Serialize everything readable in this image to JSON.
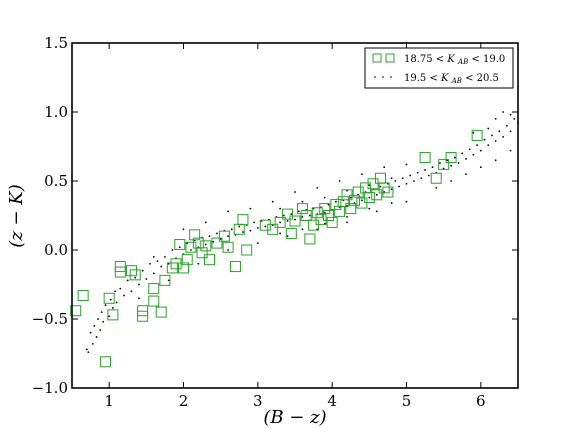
{
  "chart_data": {
    "type": "scatter",
    "title": "",
    "xlabel": "(B − z)",
    "ylabel": "(z − K)",
    "xlim": [
      0.5,
      6.5
    ],
    "ylim": [
      -1.0,
      1.5
    ],
    "x_ticks": [
      1,
      2,
      3,
      4,
      5,
      6
    ],
    "y_ticks": [
      -1.0,
      -0.5,
      0.0,
      0.5,
      1.0,
      1.5
    ],
    "x_tick_labels": [
      "1",
      "2",
      "3",
      "4",
      "5",
      "6"
    ],
    "y_tick_labels": [
      "−1.0",
      "−0.5",
      "0.0",
      "0.5",
      "1.0",
      "1.5"
    ],
    "grid": false,
    "legend_position": "top-right",
    "series": [
      {
        "name": "18.75 < K_AB < 19.0",
        "label_parts": {
          "left": "18.75 <",
          "var": "K",
          "sub": "AB",
          "right": "< 19.0"
        },
        "marker": "open-square",
        "color": "#2ca02c",
        "points": [
          [
            0.55,
            -0.44
          ],
          [
            0.65,
            -0.33
          ],
          [
            0.95,
            -0.81
          ],
          [
            1.0,
            -0.35
          ],
          [
            1.05,
            -0.47
          ],
          [
            1.15,
            -0.12
          ],
          [
            1.15,
            -0.16
          ],
          [
            1.3,
            -0.15
          ],
          [
            1.35,
            -0.18
          ],
          [
            1.45,
            -0.44
          ],
          [
            1.45,
            -0.48
          ],
          [
            1.6,
            -0.37
          ],
          [
            1.6,
            -0.28
          ],
          [
            1.7,
            -0.45
          ],
          [
            1.75,
            -0.22
          ],
          [
            1.85,
            -0.13
          ],
          [
            1.9,
            -0.1
          ],
          [
            1.95,
            0.04
          ],
          [
            2.0,
            -0.13
          ],
          [
            2.05,
            -0.07
          ],
          [
            2.1,
            0.02
          ],
          [
            2.15,
            0.11
          ],
          [
            2.2,
            0.05
          ],
          [
            2.25,
            -0.02
          ],
          [
            2.3,
            0.03
          ],
          [
            2.35,
            -0.07
          ],
          [
            2.45,
            0.05
          ],
          [
            2.55,
            0.1
          ],
          [
            2.6,
            0.02
          ],
          [
            2.7,
            -0.12
          ],
          [
            2.75,
            0.15
          ],
          [
            2.8,
            0.22
          ],
          [
            2.85,
            0.0
          ],
          [
            3.1,
            0.18
          ],
          [
            3.2,
            0.15
          ],
          [
            3.3,
            0.2
          ],
          [
            3.4,
            0.26
          ],
          [
            3.45,
            0.12
          ],
          [
            3.5,
            0.21
          ],
          [
            3.6,
            0.3
          ],
          [
            3.65,
            0.25
          ],
          [
            3.7,
            0.08
          ],
          [
            3.75,
            0.18
          ],
          [
            3.8,
            0.27
          ],
          [
            3.85,
            0.22
          ],
          [
            3.9,
            0.3
          ],
          [
            3.95,
            0.25
          ],
          [
            4.0,
            0.2
          ],
          [
            4.05,
            0.33
          ],
          [
            4.1,
            0.28
          ],
          [
            4.15,
            0.35
          ],
          [
            4.2,
            0.4
          ],
          [
            4.25,
            0.3
          ],
          [
            4.3,
            0.36
          ],
          [
            4.35,
            0.42
          ],
          [
            4.4,
            0.34
          ],
          [
            4.45,
            0.45
          ],
          [
            4.5,
            0.38
          ],
          [
            4.55,
            0.48
          ],
          [
            4.6,
            0.4
          ],
          [
            4.65,
            0.52
          ],
          [
            4.7,
            0.45
          ],
          [
            4.75,
            0.42
          ],
          [
            5.25,
            0.67
          ],
          [
            5.4,
            0.52
          ],
          [
            5.5,
            0.62
          ],
          [
            5.6,
            0.67
          ],
          [
            5.95,
            0.83
          ]
        ]
      },
      {
        "name": "19.5 < K_AB < 20.5",
        "label_parts": {
          "left": "19.5 <",
          "var": "K",
          "sub": "AB",
          "right": "< 20.5"
        },
        "marker": "dot",
        "color": "#000000",
        "points": [
          [
            0.7,
            -0.72
          ],
          [
            0.72,
            -0.74
          ],
          [
            0.75,
            -0.6
          ],
          [
            0.78,
            -0.68
          ],
          [
            0.8,
            -0.55
          ],
          [
            0.83,
            -0.63
          ],
          [
            0.85,
            -0.5
          ],
          [
            0.88,
            -0.58
          ],
          [
            0.9,
            -0.45
          ],
          [
            0.92,
            -0.52
          ],
          [
            0.95,
            -0.4
          ],
          [
            1.0,
            -0.48
          ],
          [
            1.02,
            -0.36
          ],
          [
            1.05,
            -0.42
          ],
          [
            1.08,
            -0.3
          ],
          [
            1.1,
            -0.38
          ],
          [
            1.15,
            -0.28
          ],
          [
            1.2,
            -0.33
          ],
          [
            1.25,
            -0.22
          ],
          [
            1.3,
            -0.3
          ],
          [
            1.35,
            -0.2
          ],
          [
            1.4,
            -0.25
          ],
          [
            1.45,
            -0.15
          ],
          [
            1.5,
            -0.21
          ],
          [
            1.55,
            -0.1
          ],
          [
            1.6,
            -0.17
          ],
          [
            1.65,
            -0.08
          ],
          [
            1.7,
            -0.12
          ],
          [
            1.75,
            -0.05
          ],
          [
            1.8,
            -0.1
          ],
          [
            1.85,
            0.0
          ],
          [
            1.9,
            -0.06
          ],
          [
            1.95,
            0.02
          ],
          [
            2.0,
            -0.03
          ],
          [
            2.05,
            0.05
          ],
          [
            2.1,
            0.0
          ],
          [
            2.15,
            0.07
          ],
          [
            2.2,
            0.02
          ],
          [
            2.25,
            0.09
          ],
          [
            2.3,
            0.04
          ],
          [
            2.35,
            0.1
          ],
          [
            2.4,
            0.06
          ],
          [
            2.45,
            0.12
          ],
          [
            2.5,
            0.08
          ],
          [
            2.55,
            0.14
          ],
          [
            2.6,
            0.1
          ],
          [
            2.65,
            0.15
          ],
          [
            2.7,
            0.11
          ],
          [
            2.75,
            0.17
          ],
          [
            2.8,
            0.13
          ],
          [
            2.85,
            0.18
          ],
          [
            2.9,
            0.14
          ],
          [
            2.95,
            0.2
          ],
          [
            3.0,
            0.16
          ],
          [
            3.05,
            0.21
          ],
          [
            3.1,
            0.17
          ],
          [
            3.15,
            0.22
          ],
          [
            3.2,
            0.18
          ],
          [
            3.25,
            0.24
          ],
          [
            3.3,
            0.2
          ],
          [
            3.35,
            0.25
          ],
          [
            3.4,
            0.21
          ],
          [
            3.45,
            0.26
          ],
          [
            3.5,
            0.22
          ],
          [
            3.55,
            0.28
          ],
          [
            3.6,
            0.24
          ],
          [
            3.65,
            0.29
          ],
          [
            3.7,
            0.25
          ],
          [
            3.75,
            0.3
          ],
          [
            3.8,
            0.26
          ],
          [
            3.85,
            0.31
          ],
          [
            3.9,
            0.27
          ],
          [
            3.95,
            0.33
          ],
          [
            4.0,
            0.29
          ],
          [
            4.05,
            0.35
          ],
          [
            4.1,
            0.31
          ],
          [
            4.15,
            0.36
          ],
          [
            4.2,
            0.32
          ],
          [
            4.25,
            0.38
          ],
          [
            4.3,
            0.34
          ],
          [
            4.35,
            0.4
          ],
          [
            4.4,
            0.36
          ],
          [
            4.45,
            0.42
          ],
          [
            4.5,
            0.38
          ],
          [
            4.55,
            0.44
          ],
          [
            4.6,
            0.4
          ],
          [
            4.65,
            0.46
          ],
          [
            4.7,
            0.42
          ],
          [
            4.75,
            0.48
          ],
          [
            4.8,
            0.44
          ],
          [
            4.85,
            0.5
          ],
          [
            4.9,
            0.46
          ],
          [
            4.95,
            0.52
          ],
          [
            5.0,
            0.48
          ],
          [
            5.05,
            0.54
          ],
          [
            5.1,
            0.5
          ],
          [
            5.15,
            0.56
          ],
          [
            5.2,
            0.52
          ],
          [
            5.25,
            0.58
          ],
          [
            5.3,
            0.54
          ],
          [
            5.35,
            0.6
          ],
          [
            5.4,
            0.56
          ],
          [
            5.45,
            0.63
          ],
          [
            5.5,
            0.59
          ],
          [
            5.55,
            0.65
          ],
          [
            5.6,
            0.61
          ],
          [
            5.65,
            0.67
          ],
          [
            5.7,
            0.63
          ],
          [
            5.75,
            0.7
          ],
          [
            5.8,
            0.66
          ],
          [
            5.85,
            0.73
          ],
          [
            5.9,
            0.69
          ],
          [
            5.95,
            0.76
          ],
          [
            6.0,
            0.72
          ],
          [
            6.05,
            0.8
          ],
          [
            6.1,
            0.76
          ],
          [
            6.15,
            0.83
          ],
          [
            6.2,
            0.79
          ],
          [
            6.25,
            0.86
          ],
          [
            6.3,
            0.82
          ],
          [
            6.35,
            0.9
          ],
          [
            6.4,
            0.86
          ],
          [
            6.45,
            0.95
          ],
          [
            6.5,
            0.92
          ],
          [
            1.6,
            -0.05
          ],
          [
            2.0,
            0.15
          ],
          [
            2.3,
            0.2
          ],
          [
            2.6,
            0.28
          ],
          [
            2.9,
            0.3
          ],
          [
            3.2,
            0.35
          ],
          [
            3.5,
            0.42
          ],
          [
            3.8,
            0.45
          ],
          [
            4.1,
            0.5
          ],
          [
            4.4,
            0.55
          ],
          [
            4.7,
            0.6
          ],
          [
            5.0,
            0.62
          ],
          [
            1.4,
            -0.35
          ],
          [
            1.8,
            -0.22
          ],
          [
            2.2,
            -0.1
          ],
          [
            2.6,
            0.0
          ],
          [
            3.0,
            0.05
          ],
          [
            3.4,
            0.1
          ],
          [
            3.8,
            0.15
          ],
          [
            4.2,
            0.2
          ],
          [
            4.6,
            0.28
          ],
          [
            5.0,
            0.35
          ],
          [
            5.4,
            0.45
          ],
          [
            5.8,
            0.55
          ],
          [
            6.2,
            0.65
          ],
          [
            6.4,
            0.72
          ],
          [
            6.0,
            0.6
          ],
          [
            5.6,
            0.5
          ],
          [
            3.3,
            0.3
          ],
          [
            3.6,
            0.35
          ],
          [
            3.9,
            0.38
          ],
          [
            4.2,
            0.43
          ],
          [
            4.5,
            0.47
          ],
          [
            4.8,
            0.52
          ],
          [
            3.3,
            0.12
          ],
          [
            3.6,
            0.15
          ],
          [
            3.9,
            0.19
          ],
          [
            4.2,
            0.24
          ],
          [
            4.5,
            0.3
          ],
          [
            4.8,
            0.34
          ],
          [
            6.2,
            0.95
          ],
          [
            6.3,
            1.0
          ],
          [
            6.4,
            0.98
          ],
          [
            5.9,
            0.85
          ],
          [
            6.1,
            0.88
          ]
        ]
      }
    ]
  }
}
